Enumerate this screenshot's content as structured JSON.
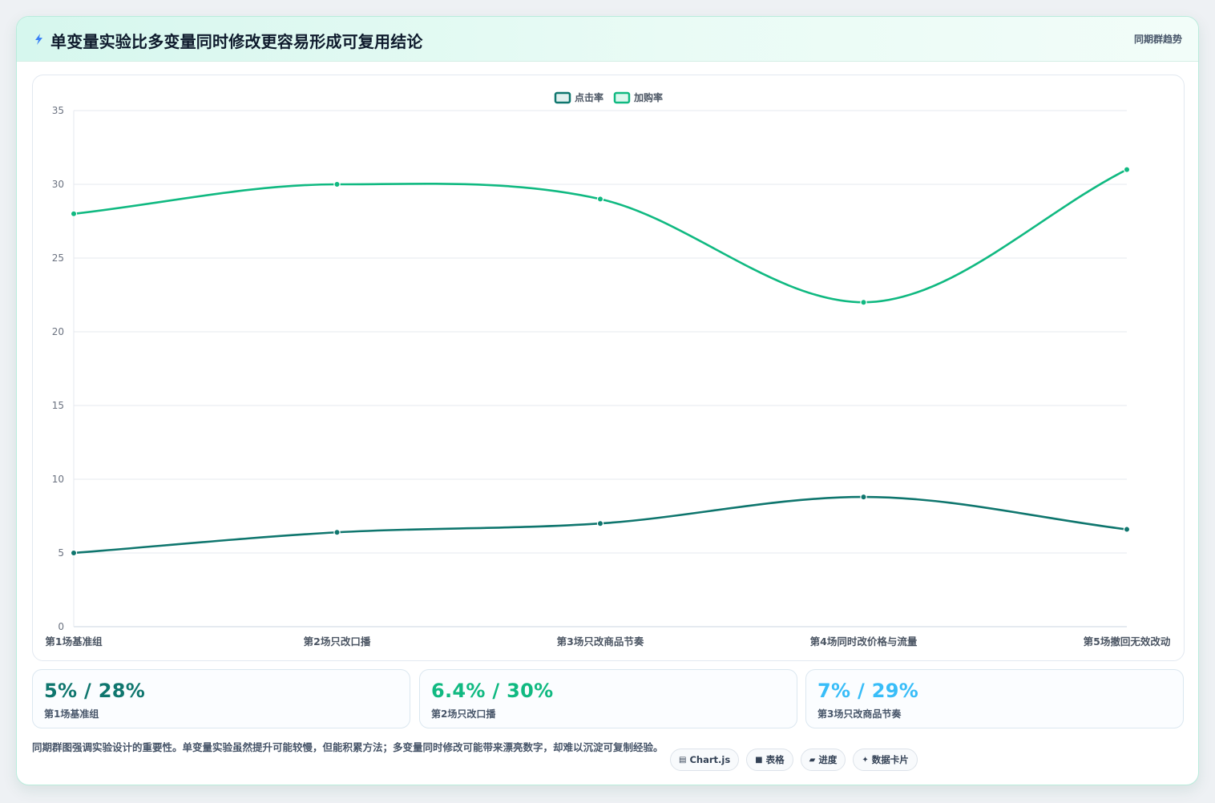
{
  "header": {
    "title": "单变量实验比多变量同时修改更容易形成可复用结论",
    "tag": "同期群趋势",
    "icon": "lightning-icon"
  },
  "chart_data": {
    "type": "line",
    "categories": [
      "第1场基准组",
      "第2场只改口播",
      "第3场只改商品节奏",
      "第4场同时改价格与流量",
      "第5场撤回无效改动"
    ],
    "series": [
      {
        "name": "点击率",
        "values": [
          5,
          6.4,
          7,
          8.8,
          6.6
        ],
        "color": "#0f766e"
      },
      {
        "name": "加购率",
        "values": [
          28,
          30,
          29,
          22,
          31
        ],
        "color": "#10b981"
      }
    ],
    "ylim": [
      0,
      35
    ],
    "yticks": [
      0,
      5,
      10,
      15,
      20,
      25,
      30,
      35
    ],
    "grid": true,
    "legend": "top-center",
    "curve": "smooth"
  },
  "kpis": [
    {
      "value": "5% / 28%",
      "label": "第1场基准组",
      "color": "#0f766e"
    },
    {
      "value": "6.4% / 30%",
      "label": "第2场只改口播",
      "color": "#10b981"
    },
    {
      "value": "7% / 29%",
      "label": "第3场只改商品节奏",
      "color": "#38bdf8"
    }
  ],
  "note": "同期群图强调实验设计的重要性。单变量实验虽然提升可能较慢，但能积累方法；多变量同时修改可能带来漂亮数字，却难以沉淀可复制经验。",
  "chips": [
    {
      "icon": "chart-icon",
      "glyph": "▤",
      "label": "Chart.js"
    },
    {
      "icon": "table-icon",
      "glyph": "■",
      "label": "表格"
    },
    {
      "icon": "progress-icon",
      "glyph": "▰",
      "label": "进度"
    },
    {
      "icon": "sparkle-icon",
      "glyph": "✦",
      "label": "数据卡片"
    }
  ]
}
